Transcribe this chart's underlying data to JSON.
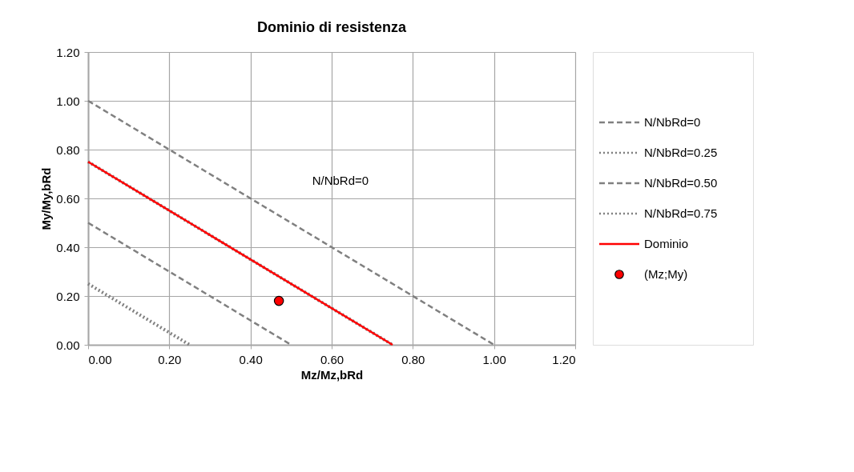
{
  "chart_data": {
    "type": "line",
    "title": "Dominio di resistenza",
    "xlabel": "Mz/Mz,bRd",
    "ylabel": "My/My,bRd",
    "xlim": [
      0,
      1.2
    ],
    "ylim": [
      0,
      1.2
    ],
    "xticks": [
      {
        "value": 0,
        "label": "0.00"
      },
      {
        "value": 0.2,
        "label": "0.20"
      },
      {
        "value": 0.4,
        "label": "0.40"
      },
      {
        "value": 0.6,
        "label": "0.60"
      },
      {
        "value": 0.8,
        "label": "0.80"
      },
      {
        "value": 1.0,
        "label": "1.00"
      },
      {
        "value": 1.2,
        "label": "1.20"
      }
    ],
    "yticks": [
      {
        "value": 0,
        "label": "0.00"
      },
      {
        "value": 0.2,
        "label": "0.20"
      },
      {
        "value": 0.4,
        "label": "0.40"
      },
      {
        "value": 0.6,
        "label": "0.60"
      },
      {
        "value": 0.8,
        "label": "0.80"
      },
      {
        "value": 1.0,
        "label": "1.00"
      },
      {
        "value": 1.2,
        "label": "1.20"
      }
    ],
    "grid": true,
    "legend": "right",
    "series": [
      {
        "name": "N/NbRd=0",
        "type": "line",
        "line_style": "dashed",
        "color": "#808080",
        "x": [
          0,
          1.0
        ],
        "values": [
          1.0,
          0
        ]
      },
      {
        "name": "N/NbRd=0.25",
        "type": "line",
        "line_style": "dotted",
        "color": "#808080",
        "x": [
          0,
          0.75
        ],
        "values": [
          0.75,
          0
        ]
      },
      {
        "name": "N/NbRd=0.50",
        "type": "line",
        "line_style": "dashed",
        "color": "#808080",
        "x": [
          0,
          0.5
        ],
        "values": [
          0.5,
          0
        ]
      },
      {
        "name": "N/NbRd=0.75",
        "type": "line",
        "line_style": "dotted",
        "color": "#808080",
        "x": [
          0,
          0.25
        ],
        "values": [
          0.25,
          0
        ]
      },
      {
        "name": "Dominio",
        "type": "line",
        "line_style": "solid",
        "color": "#ff0000",
        "x": [
          0,
          0.75
        ],
        "values": [
          0.75,
          0
        ]
      },
      {
        "name": "(Mz;My)",
        "type": "scatter",
        "marker": "circle",
        "color": "#ff0000",
        "x": [
          0.47
        ],
        "values": [
          0.18
        ]
      }
    ],
    "annotations": [
      "N/NbRd=0"
    ]
  }
}
